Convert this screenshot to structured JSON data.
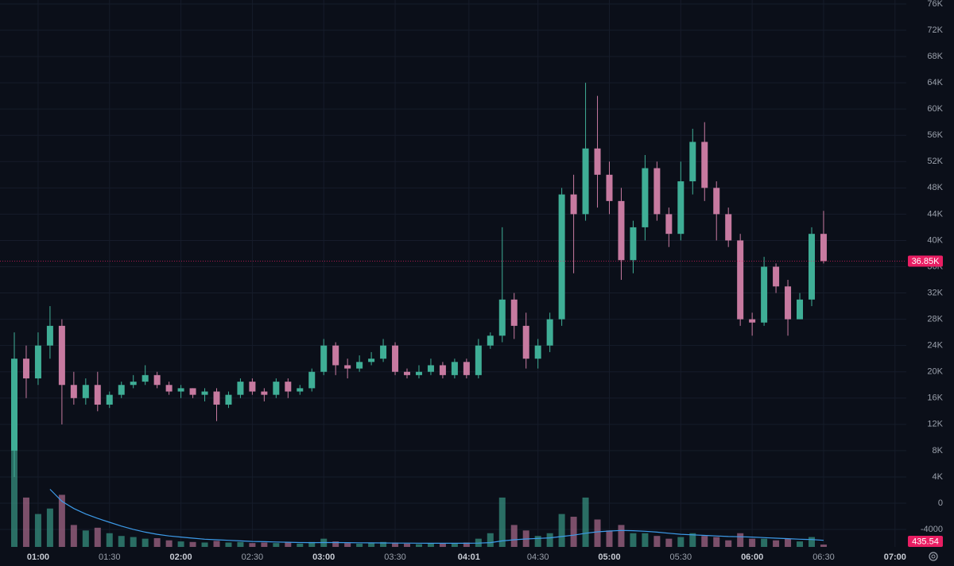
{
  "chart_data": {
    "type": "candlestick",
    "x": [
      "00:50",
      "00:55",
      "01:00",
      "01:05",
      "01:10",
      "01:15",
      "01:20",
      "01:25",
      "01:30",
      "01:35",
      "01:40",
      "01:45",
      "01:50",
      "01:55",
      "02:00",
      "02:05",
      "02:10",
      "02:15",
      "02:20",
      "02:25",
      "02:30",
      "02:35",
      "02:40",
      "02:45",
      "02:50",
      "02:55",
      "03:00",
      "03:05",
      "03:10",
      "03:15",
      "03:20",
      "03:25",
      "03:30",
      "03:35",
      "03:40",
      "03:45",
      "03:50",
      "03:55",
      "04:00",
      "04:05",
      "04:10",
      "04:15",
      "04:20",
      "04:25",
      "04:30",
      "04:35",
      "04:40",
      "04:45",
      "04:50",
      "04:55",
      "05:00",
      "05:05",
      "05:10",
      "05:15",
      "05:20",
      "05:25",
      "05:30",
      "05:35",
      "05:40",
      "05:45",
      "05:50",
      "05:55",
      "06:00",
      "06:05",
      "06:10",
      "06:15",
      "06:20",
      "06:25",
      "06:30"
    ],
    "open": [
      8000,
      22000,
      19000,
      24000,
      27000,
      18000,
      16000,
      18000,
      15000,
      16500,
      18000,
      18500,
      19500,
      18000,
      17000,
      17500,
      16500,
      17000,
      15000,
      16500,
      18500,
      17000,
      16500,
      18500,
      17000,
      17500,
      20000,
      24000,
      21000,
      20500,
      21500,
      22000,
      24000,
      20000,
      19500,
      20000,
      21000,
      19500,
      21500,
      19500,
      24000,
      25500,
      31000,
      27000,
      22000,
      24000,
      28000,
      47000,
      44000,
      54000,
      50000,
      46000,
      37000,
      42000,
      51000,
      44000,
      41000,
      49000,
      55000,
      48000,
      44000,
      40000,
      28000,
      27500,
      36000,
      33000,
      28000,
      31000,
      41000
    ],
    "high": [
      26000,
      24000,
      26000,
      30000,
      28000,
      20000,
      19000,
      20000,
      17000,
      18500,
      19500,
      21000,
      20000,
      18500,
      18000,
      17500,
      17500,
      17500,
      17000,
      19000,
      19000,
      17500,
      19000,
      19000,
      18000,
      20500,
      25000,
      24500,
      22000,
      22500,
      23000,
      25000,
      24500,
      20500,
      21000,
      22000,
      21500,
      22000,
      22000,
      25000,
      26000,
      42000,
      32000,
      29000,
      25000,
      29000,
      48000,
      50000,
      64000,
      62000,
      52000,
      48000,
      43000,
      53000,
      52000,
      45000,
      52000,
      57000,
      58000,
      49000,
      45000,
      41000,
      29000,
      37500,
      36500,
      34000,
      32000,
      42000,
      44500
    ],
    "low": [
      4000,
      16000,
      18000,
      22000,
      12000,
      15000,
      15000,
      14000,
      14500,
      16000,
      17500,
      18000,
      17500,
      16500,
      16000,
      16000,
      15500,
      12500,
      14500,
      16000,
      16500,
      15500,
      16000,
      16000,
      16500,
      17000,
      19500,
      19500,
      19000,
      20000,
      21000,
      21500,
      19500,
      19000,
      19000,
      19500,
      19000,
      19000,
      19000,
      19000,
      23500,
      24500,
      25000,
      20500,
      20500,
      23000,
      27000,
      35000,
      43000,
      45000,
      44000,
      34000,
      35000,
      40000,
      43000,
      39000,
      40000,
      47000,
      46000,
      40000,
      39000,
      27000,
      25500,
      27000,
      32000,
      25500,
      28000,
      30000,
      36500
    ],
    "close": [
      22000,
      19000,
      24000,
      27000,
      18000,
      16000,
      18000,
      15000,
      16500,
      18000,
      18500,
      19500,
      18000,
      17000,
      17500,
      16500,
      17000,
      15000,
      16500,
      18500,
      17000,
      16500,
      18500,
      17000,
      17500,
      20000,
      24000,
      21000,
      20500,
      21500,
      22000,
      24000,
      20000,
      19500,
      20000,
      21000,
      19500,
      21500,
      19500,
      24000,
      25500,
      31000,
      27000,
      22000,
      24000,
      28000,
      47000,
      44000,
      54000,
      50000,
      46000,
      37000,
      42000,
      51000,
      44000,
      41000,
      49000,
      55000,
      48000,
      44000,
      40000,
      28000,
      27500,
      36000,
      33000,
      28000,
      31000,
      41000,
      36850
    ],
    "volume": [
      20000,
      9000,
      6000,
      7000,
      9500,
      4000,
      3000,
      3500,
      2500,
      2000,
      1800,
      1500,
      1600,
      1200,
      1000,
      900,
      800,
      1100,
      800,
      900,
      700,
      800,
      700,
      800,
      600,
      900,
      1500,
      1000,
      700,
      600,
      700,
      900,
      800,
      600,
      500,
      700,
      600,
      700,
      800,
      1500,
      2500,
      9000,
      4000,
      3000,
      2000,
      2500,
      6000,
      5500,
      9000,
      5000,
      3000,
      4000,
      2500,
      2500,
      2000,
      1500,
      1800,
      2500,
      2000,
      1800,
      1200,
      2500,
      1500,
      1500,
      1200,
      1500,
      1000,
      1800,
      435.54
    ],
    "volume_ma": [
      null,
      null,
      null,
      10500,
      8300,
      7000,
      6000,
      5200,
      4500,
      3800,
      3200,
      2700,
      2300,
      2000,
      1800,
      1600,
      1400,
      1300,
      1200,
      1100,
      1000,
      950,
      900,
      850,
      800,
      780,
      800,
      800,
      780,
      760,
      740,
      720,
      700,
      690,
      680,
      670,
      660,
      660,
      670,
      700,
      780,
      1100,
      1300,
      1450,
      1550,
      1650,
      1900,
      2150,
      2500,
      2750,
      2900,
      3000,
      2950,
      2850,
      2700,
      2500,
      2300,
      2200,
      2100,
      2000,
      1900,
      1850,
      1800,
      1700,
      1600,
      1500,
      1400,
      1350,
      1200
    ],
    "up_color": "#3fae96",
    "down_color": "#c77aa0",
    "ma_color": "#3d9be9",
    "last_color": "#e91e63",
    "last_price_label": "36.85K",
    "ylim": [
      -9560,
      76600
    ],
    "yticks": [
      -4000,
      0,
      {
        "value": 4000,
        "label": "4K"
      },
      {
        "value": 8000,
        "label": "8K"
      },
      {
        "value": 12000,
        "label": "12K"
      },
      {
        "value": 16000,
        "label": "16K"
      },
      {
        "value": 20000,
        "label": "20K"
      },
      {
        "value": 24000,
        "label": "24K"
      },
      {
        "value": 28000,
        "label": "28K"
      },
      {
        "value": 32000,
        "label": "32K"
      },
      {
        "value": 36000,
        "label": "36K"
      },
      {
        "value": 40000,
        "label": "40K"
      },
      {
        "value": 44000,
        "label": "44K"
      },
      {
        "value": 48000,
        "label": "48K"
      },
      {
        "value": 52000,
        "label": "52K"
      },
      {
        "value": 56000,
        "label": "56K"
      },
      {
        "value": 60000,
        "label": "60K"
      },
      {
        "value": 64000,
        "label": "64K"
      },
      {
        "value": 68000,
        "label": "68K"
      },
      {
        "value": 72000,
        "label": "72K"
      },
      {
        "value": 76000,
        "label": "76K"
      }
    ],
    "xticks": [
      "01:00",
      "01:30",
      "02:00",
      "02:30",
      "03:00",
      "03:30",
      "04:01",
      "04:30",
      "05:00",
      "05:30",
      "06:00",
      "06:30",
      "07:00"
    ],
    "grid": true
  }
}
